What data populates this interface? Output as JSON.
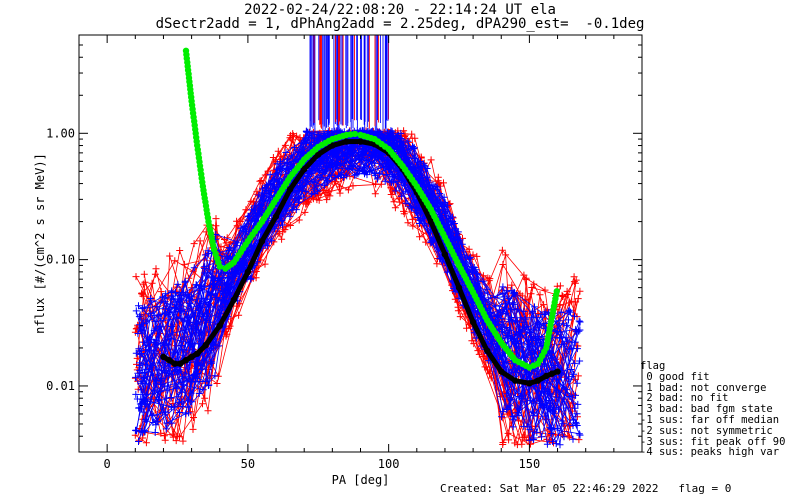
{
  "header": {
    "title_line1": "2022-02-24/22:08:20 - 22:14:24 UT ela",
    "title_line2": "dSectr2add = 1, dPhAng2add = 2.25deg, dPA290_est=  -0.1deg"
  },
  "legend": {
    "title": "flag",
    "items": [
      " 0 good fit",
      " 1 bad: not converge",
      " 2 bad: no fit",
      " 3 bad: bad fgm state",
      "-1 sus: far off median",
      "-2 sus: not symmetric",
      "-3 sus: fit peak off 90",
      "-4 sus: peaks high var"
    ]
  },
  "footer": {
    "created": "Created: Sat Mar 05 22:46:29 2022",
    "flag": "flag = 0"
  },
  "colors": {
    "red_series": "#ff0000",
    "blue_series": "#0000ff",
    "fit_curve": "#00ee00",
    "median_curve": "#000000"
  },
  "chart_data": {
    "type": "line",
    "title": "2022-02-24/22:08:20 - 22:14:24 UT ela",
    "subtitle": "dSectr2add = 1, dPhAng2add = 2.25deg, dPA290_est=  -0.1deg",
    "xlabel": "PA [deg]",
    "ylabel": "nflux [#/(cm^2 s sr MeV)]",
    "x_range": [
      -10,
      190
    ],
    "y_range": [
      0.003,
      6.0
    ],
    "y_scale": "log",
    "x_ticks": [
      0,
      50,
      100,
      150
    ],
    "x_tick_labels": [
      "0",
      "50",
      "100",
      "150"
    ],
    "y_ticks": [
      0.01,
      0.1,
      1.0
    ],
    "y_tick_labels": [
      "0.01",
      "0.10",
      "1.00"
    ],
    "grid": false,
    "legend_position": "right",
    "series": [
      {
        "style": "green thick dotted",
        "x": [
          28,
          30,
          32,
          34,
          36,
          38,
          40,
          42,
          45,
          50,
          55,
          60,
          65,
          70,
          75,
          80,
          85,
          88,
          90,
          95,
          100,
          105,
          110,
          115,
          120,
          125,
          130,
          135,
          140,
          145,
          150,
          153,
          156,
          158,
          160
        ],
        "y": [
          4.5,
          1.8,
          0.8,
          0.38,
          0.2,
          0.12,
          0.088,
          0.085,
          0.095,
          0.14,
          0.2,
          0.3,
          0.45,
          0.62,
          0.78,
          0.9,
          0.97,
          0.99,
          0.97,
          0.9,
          0.75,
          0.55,
          0.38,
          0.25,
          0.15,
          0.09,
          0.055,
          0.033,
          0.022,
          0.016,
          0.014,
          0.015,
          0.02,
          0.035,
          0.06
        ]
      },
      {
        "style": "black thick",
        "x": [
          20,
          22,
          24,
          26,
          28,
          30,
          32,
          35,
          40,
          45,
          50,
          55,
          60,
          65,
          70,
          75,
          80,
          85,
          90,
          95,
          100,
          105,
          110,
          115,
          120,
          125,
          130,
          135,
          140,
          145,
          150,
          153,
          156,
          158,
          160
        ],
        "y": [
          0.017,
          0.016,
          0.015,
          0.015,
          0.016,
          0.017,
          0.018,
          0.021,
          0.03,
          0.048,
          0.08,
          0.14,
          0.22,
          0.36,
          0.52,
          0.68,
          0.8,
          0.86,
          0.86,
          0.82,
          0.7,
          0.52,
          0.34,
          0.2,
          0.11,
          0.06,
          0.032,
          0.019,
          0.013,
          0.011,
          0.0105,
          0.011,
          0.012,
          0.0125,
          0.013
        ]
      },
      {
        "style": "blue band median",
        "x": [
          11,
          20,
          30,
          40,
          50,
          60,
          70,
          80,
          90,
          100,
          110,
          120,
          130,
          140,
          150,
          160
        ],
        "y": [
          0.012,
          0.016,
          0.022,
          0.05,
          0.12,
          0.3,
          0.55,
          0.8,
          0.85,
          0.75,
          0.4,
          0.16,
          0.05,
          0.02,
          0.012,
          0.012
        ]
      }
    ]
  }
}
